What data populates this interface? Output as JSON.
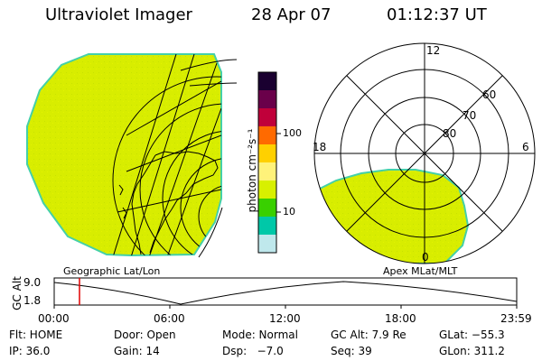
{
  "header": {
    "instrument": "Ultraviolet Imager",
    "date": "28 Apr 07",
    "time": "01:12:37 UT"
  },
  "panels": {
    "left_label": "Geographic Lat/Lon",
    "right_label": "Apex MLat/MLT"
  },
  "colorbar": {
    "unit": "photon cm⁻²s⁻¹",
    "ticks": [
      "100",
      "10"
    ],
    "colors": [
      "#1a0030",
      "#6a004a",
      "#c0003a",
      "#ff6a00",
      "#ffd000",
      "#fff27a",
      "#d8f000",
      "#39d000",
      "#00c8a8",
      "#bfe8ec"
    ]
  },
  "polar": {
    "mlt_labels": [
      "12",
      "18",
      "6",
      "0"
    ],
    "lat_labels": [
      "60",
      "70",
      "80"
    ]
  },
  "altitude_plot": {
    "ylabel": "GC Alt",
    "yticks": [
      "9.0",
      "1.8"
    ],
    "xticks": [
      "00:00",
      "06:00",
      "12:00",
      "18:00",
      "23:59"
    ],
    "current_time_marker_color": "#e00000"
  },
  "status": {
    "row1": [
      "Flt: HOME",
      "Door: Open",
      "Mode: Normal",
      "GC Alt: 7.9 Re",
      "GLat: −55.3"
    ],
    "row2": [
      "IP: 36.0",
      "Gain: 14",
      "Dsp:   −7.0",
      "Seq: 39",
      "GLon: 311.2"
    ]
  },
  "colors": {
    "emission": "#d8ed00",
    "emission_edge": "#44d0a8",
    "line": "#000000"
  }
}
